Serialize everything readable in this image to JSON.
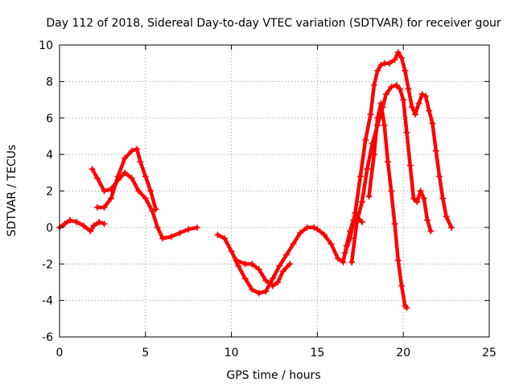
{
  "chart_data": {
    "type": "line",
    "title": "Day 112 of 2018, Sidereal Day-to-day VTEC variation (SDTVAR) for receiver gour",
    "xlabel": "GPS time / hours",
    "ylabel": "SDTVAR / TECUs",
    "xlim": [
      0,
      25
    ],
    "ylim": [
      -6,
      10
    ],
    "xticks": [
      "0",
      "5",
      "10",
      "15",
      "20",
      "25"
    ],
    "yticks": [
      "-6",
      "-4",
      "-2",
      "0",
      "2",
      "4",
      "6",
      "8",
      "10"
    ],
    "grid": true,
    "marker": "+",
    "color": "#ff0000",
    "series": [
      {
        "name": "s1",
        "x": [
          0,
          0.3,
          0.6,
          1.0,
          1.4,
          1.8,
          2.0
        ],
        "y": [
          0.0,
          0.2,
          0.4,
          0.3,
          0.1,
          -0.2,
          0.1
        ]
      },
      {
        "name": "s2",
        "x": [
          2.0,
          2.3,
          2.6
        ],
        "y": [
          0.1,
          0.3,
          0.2
        ]
      },
      {
        "name": "s3",
        "x": [
          1.9,
          2.2,
          2.6,
          3.0,
          3.4,
          3.8,
          4.2,
          4.6,
          5.0,
          5.4,
          5.7,
          6.0,
          6.5,
          7.0,
          7.5,
          8.0
        ],
        "y": [
          3.2,
          2.7,
          2.0,
          2.1,
          2.6,
          3.0,
          2.7,
          2.0,
          1.6,
          0.9,
          0.0,
          -0.6,
          -0.5,
          -0.3,
          -0.1,
          0.0
        ]
      },
      {
        "name": "s4",
        "x": [
          2.2,
          2.6,
          3.0,
          3.4,
          3.8,
          4.2,
          4.5,
          4.7,
          5.0,
          5.3,
          5.6
        ],
        "y": [
          1.1,
          1.1,
          1.6,
          2.8,
          3.8,
          4.2,
          4.3,
          3.6,
          2.8,
          2.0,
          1.0
        ]
      },
      {
        "name": "s5",
        "x": [
          9.2,
          9.6,
          10.0,
          10.4,
          10.8,
          11.2,
          11.6,
          12.0,
          12.4,
          12.8,
          13.2,
          13.6,
          14.0,
          14.4,
          14.8,
          15.0,
          15.4,
          15.8,
          16.2,
          16.5,
          16.7,
          16.9,
          17.1,
          17.3,
          17.6
        ],
        "y": [
          -0.4,
          -0.6,
          -1.3,
          -2.1,
          -2.8,
          -3.4,
          -3.6,
          -3.5,
          -2.8,
          -2.1,
          -1.5,
          -0.9,
          -0.3,
          0.0,
          0.0,
          -0.1,
          -0.4,
          -0.9,
          -1.7,
          -1.9,
          -1.0,
          -0.2,
          0.4,
          0.6,
          0.3
        ]
      },
      {
        "name": "s6",
        "x": [
          10.3,
          10.8,
          11.2,
          11.6,
          12.0,
          12.4,
          12.7,
          13.0,
          13.4
        ],
        "y": [
          -1.8,
          -2.0,
          -2.0,
          -2.3,
          -2.9,
          -3.2,
          -3.0,
          -2.4,
          -2.0
        ]
      },
      {
        "name": "s7",
        "x": [
          16.6,
          16.9,
          17.2,
          17.5,
          17.8,
          18.1,
          18.3,
          18.5,
          18.7,
          18.9,
          19.2,
          19.5,
          19.7,
          19.9,
          20.1,
          20.3,
          20.5,
          20.7,
          20.9,
          21.1,
          21.3,
          21.5,
          21.7,
          21.9,
          22.1,
          22.3,
          22.5,
          22.8
        ],
        "y": [
          -1.4,
          -0.6,
          0.8,
          2.8,
          4.8,
          6.2,
          7.8,
          8.6,
          8.9,
          9.0,
          9.0,
          9.2,
          9.6,
          9.3,
          8.6,
          7.6,
          6.6,
          6.2,
          6.8,
          7.3,
          7.2,
          6.4,
          5.7,
          4.2,
          2.8,
          1.6,
          0.6,
          0.0
        ]
      },
      {
        "name": "s8",
        "x": [
          17.0,
          17.3,
          17.6,
          17.9,
          18.2,
          18.5,
          18.8,
          19.0,
          19.3,
          19.6,
          19.8,
          20.0,
          20.2,
          20.4,
          20.6,
          20.8,
          21.0,
          21.2,
          21.4,
          21.6
        ],
        "y": [
          -1.9,
          0.3,
          1.4,
          3.2,
          4.6,
          5.6,
          6.6,
          7.3,
          7.7,
          7.8,
          7.6,
          7.0,
          5.2,
          3.4,
          1.6,
          1.4,
          2.0,
          1.6,
          0.4,
          -0.2
        ]
      },
      {
        "name": "s9",
        "x": [
          18.0,
          18.3,
          18.5,
          18.7,
          18.9,
          19.1,
          19.3,
          19.5,
          19.7,
          19.9,
          20.1,
          20.2
        ],
        "y": [
          1.7,
          4.0,
          6.0,
          6.8,
          5.6,
          3.6,
          2.0,
          0.2,
          -1.8,
          -3.2,
          -4.3,
          -4.4
        ]
      }
    ]
  }
}
